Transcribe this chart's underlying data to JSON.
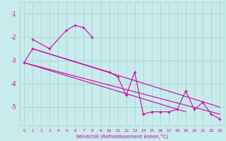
{
  "xlabel": "Windchill (Refroidissement éolien,°C)",
  "bg_color": "#c8ecec",
  "grid_color": "#a0d0d0",
  "line_color": "#cc00aa",
  "xlim": [
    -0.5,
    23.5
  ],
  "ylim": [
    -5.8,
    -0.5
  ],
  "yticks": [
    -5,
    -4,
    -3,
    -2,
    -1
  ],
  "xticks": [
    0,
    1,
    2,
    3,
    4,
    5,
    6,
    7,
    8,
    9,
    10,
    11,
    12,
    13,
    14,
    15,
    16,
    17,
    18,
    19,
    20,
    21,
    22,
    23
  ],
  "series_zigzag_x": [
    1,
    3,
    5,
    6,
    7,
    8
  ],
  "series_zigzag_y": [
    -2.1,
    -2.5,
    -1.7,
    -1.5,
    -1.6,
    -2.0
  ],
  "series_main_x": [
    0,
    1,
    10,
    11,
    12,
    13,
    14,
    15,
    16,
    17,
    18,
    19,
    20,
    21,
    22,
    23
  ],
  "series_main_y": [
    -3.1,
    -2.5,
    -3.5,
    -3.7,
    -4.5,
    -3.5,
    -5.3,
    -5.2,
    -5.2,
    -5.2,
    -5.1,
    -4.3,
    -5.1,
    -4.8,
    -5.3,
    -5.5
  ],
  "trend1_x": [
    0,
    23
  ],
  "trend1_y": [
    -3.1,
    -5.3
  ],
  "trend2_x": [
    1,
    23
  ],
  "trend2_y": [
    -2.5,
    -5.0
  ],
  "trend3_x": [
    0,
    19
  ],
  "trend3_y": [
    -3.1,
    -5.2
  ]
}
